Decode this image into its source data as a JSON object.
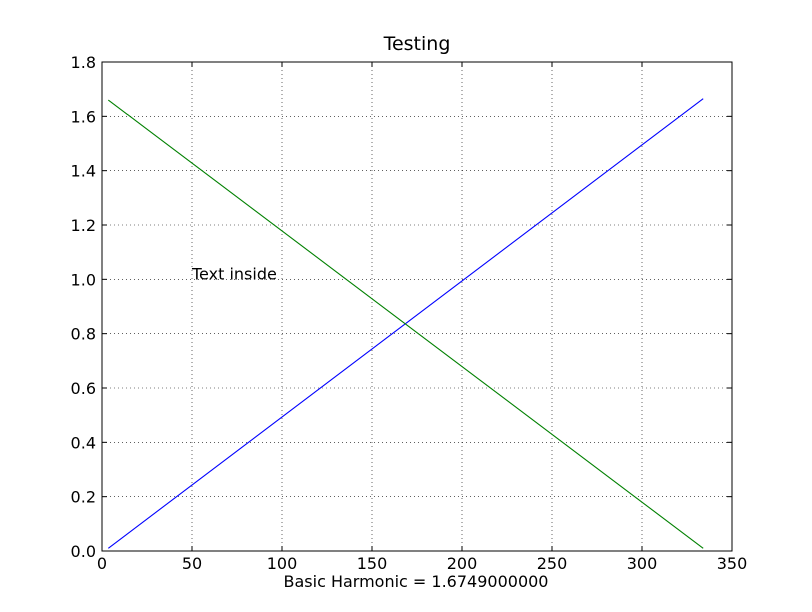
{
  "chart_data": {
    "type": "line",
    "title": "Testing",
    "xlabel": "Basic Harmonic = 1.6749000000",
    "ylabel": "",
    "xlim": [
      0,
      350
    ],
    "ylim": [
      0,
      1.8
    ],
    "xticks": [
      0,
      50,
      100,
      150,
      200,
      250,
      300,
      350
    ],
    "yticks": [
      0.0,
      0.2,
      0.4,
      0.6,
      0.8,
      1.0,
      1.2,
      1.4,
      1.6,
      1.8
    ],
    "xtick_labels": [
      "0",
      "50",
      "100",
      "150",
      "200",
      "250",
      "300",
      "350"
    ],
    "ytick_labels": [
      "0.0",
      "0.2",
      "0.4",
      "0.6",
      "0.8",
      "1.0",
      "1.2",
      "1.4",
      "1.6",
      "1.8"
    ],
    "grid": true,
    "series": [
      {
        "color": "#0000ff",
        "x": [
          3.5,
          334
        ],
        "y": [
          0.01,
          1.665
        ]
      },
      {
        "color": "#008000",
        "x": [
          3.5,
          334
        ],
        "y": [
          1.66,
          0.01
        ]
      }
    ],
    "annotations": [
      {
        "text": "Text inside",
        "x": 50,
        "y": 1.0
      }
    ]
  }
}
